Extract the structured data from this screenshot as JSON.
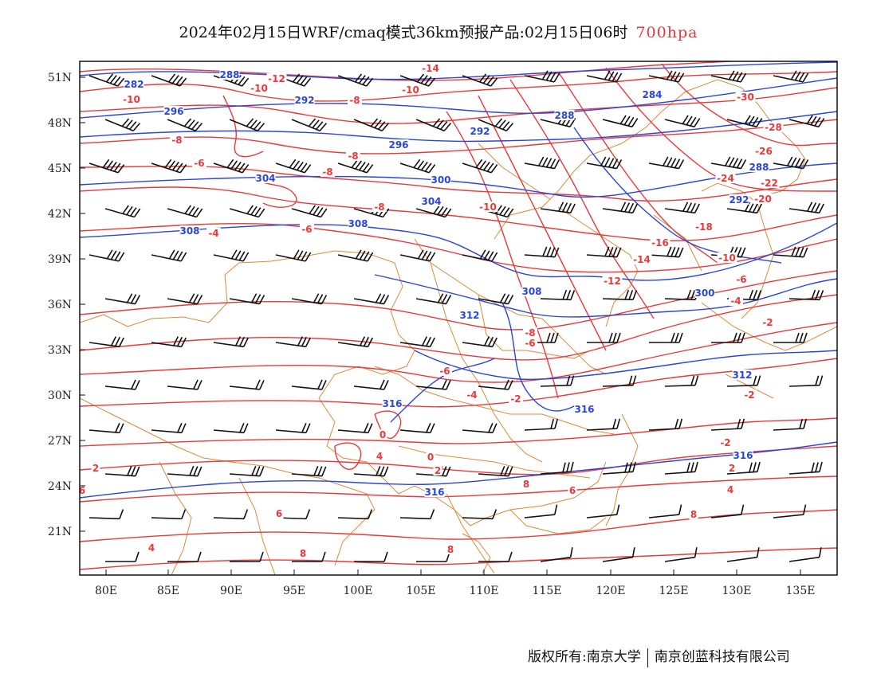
{
  "title": {
    "main": "2024年02月15日WRF/cmaq模式36km预报产品:02月15日06时",
    "level": "700hpa"
  },
  "map": {
    "lat_ticks": [
      "51N",
      "48N",
      "45N",
      "42N",
      "39N",
      "36N",
      "33N",
      "30N",
      "27N",
      "24N",
      "21N"
    ],
    "lon_ticks": [
      "80E",
      "85E",
      "90E",
      "95E",
      "100E",
      "105E",
      "110E",
      "115E",
      "120E",
      "125E",
      "130E",
      "135E"
    ],
    "temperature_labels": [
      "-10",
      "-12",
      "-10",
      "-14",
      "-8",
      "-10",
      "-8",
      "-8",
      "-6",
      "-8",
      "-8",
      "-10",
      "-6",
      "-4",
      "-6",
      "-8",
      "-30",
      "-28",
      "-26",
      "-24",
      "-22",
      "-20",
      "-18",
      "-16",
      "-14",
      "-12",
      "-10",
      "-6",
      "-4",
      "-2",
      "-6",
      "-4",
      "-2",
      "0",
      "-2",
      "0",
      "2",
      "4",
      "6",
      "8",
      "8",
      "8",
      "6",
      "4",
      "2",
      "-2",
      "2",
      "4",
      "6",
      "8"
    ],
    "height_labels": [
      "282",
      "288",
      "292",
      "296",
      "284",
      "288",
      "296",
      "292",
      "300",
      "304",
      "304",
      "308",
      "312",
      "316",
      "316",
      "300",
      "308",
      "288",
      "292",
      "308",
      "312",
      "316",
      "316"
    ],
    "colors": {
      "temperature": "#e83a3a",
      "height": "#2a45d8",
      "boundary": "#d98a3a",
      "wind": "#111111"
    }
  },
  "copyright": {
    "owner": "版权所有:南京大学",
    "company": "南京创蓝科技有限公司"
  }
}
